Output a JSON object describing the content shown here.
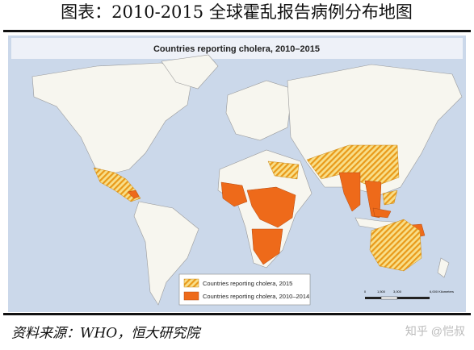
{
  "header": {
    "title": "图表：2010-2015 全球霍乱报告病例分布地图"
  },
  "map": {
    "title": "Countries reporting cholera, 2010–2015",
    "legend": [
      "Countries reporting cholera, 2015",
      "Countries reporting cholera, 2010–2014"
    ],
    "scale": [
      "0",
      "1,500",
      "3,000",
      "6,000 Kilometers"
    ]
  },
  "footer": {
    "source": "资料来源：WHO，恒大研究院",
    "watermark": "知乎 @恺叔"
  }
}
